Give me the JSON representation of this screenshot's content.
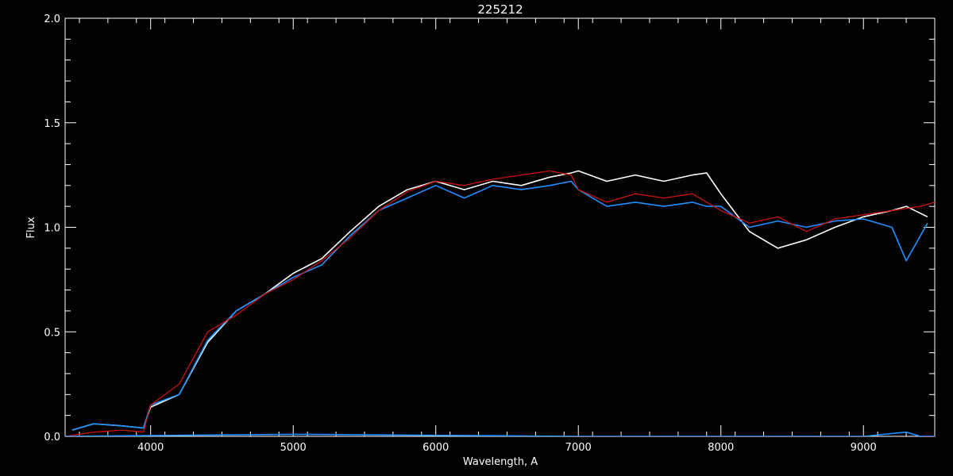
{
  "chart_data": {
    "type": "line",
    "title": "225212",
    "xlabel": "Wavelength, A",
    "ylabel": "Flux",
    "xlim": [
      3400,
      9500
    ],
    "ylim": [
      0.0,
      2.0
    ],
    "x_ticks": [
      4000,
      5000,
      6000,
      7000,
      8000,
      9000
    ],
    "x_tick_labels": [
      "4000",
      "5000",
      "6000",
      "7000",
      "8000",
      "9000"
    ],
    "y_ticks": [
      0.0,
      0.5,
      1.0,
      1.5,
      2.0
    ],
    "y_tick_labels": [
      "0.0",
      "0.5",
      "1.0",
      "1.5",
      "2.0"
    ],
    "grid": false,
    "legend": "none",
    "colors": {
      "background": "#000000",
      "axes": "#ffffff",
      "white_series": "#ffffff",
      "blue_series": "#1e90ff",
      "red_series": "#cc1111"
    },
    "series": [
      {
        "color": "#ffffff",
        "x": [
          3450,
          3600,
          3800,
          3950,
          4000,
          4200,
          4400,
          4600,
          4800,
          5000,
          5200,
          5400,
          5600,
          5800,
          6000,
          6200,
          6400,
          6600,
          6800,
          6950,
          7000,
          7200,
          7400,
          7600,
          7800,
          7900,
          8000,
          8200,
          8400,
          8600,
          8800,
          9000,
          9200,
          9300,
          9450
        ],
        "y": [
          0.03,
          0.06,
          0.05,
          0.04,
          0.14,
          0.2,
          0.45,
          0.6,
          0.68,
          0.78,
          0.85,
          0.98,
          1.1,
          1.18,
          1.22,
          1.18,
          1.22,
          1.2,
          1.24,
          1.26,
          1.27,
          1.22,
          1.25,
          1.22,
          1.25,
          1.26,
          1.16,
          0.98,
          0.9,
          0.94,
          1.0,
          1.05,
          1.08,
          1.1,
          1.05
        ]
      },
      {
        "color": "#1e90ff",
        "x": [
          3450,
          3600,
          3800,
          3950,
          4000,
          4200,
          4400,
          4600,
          4800,
          5000,
          5200,
          5400,
          5600,
          5800,
          6000,
          6200,
          6400,
          6600,
          6800,
          6950,
          7000,
          7200,
          7400,
          7600,
          7800,
          7900,
          8000,
          8200,
          8400,
          8600,
          8800,
          9000,
          9200,
          9300,
          9450
        ],
        "y": [
          0.03,
          0.06,
          0.05,
          0.04,
          0.15,
          0.2,
          0.46,
          0.6,
          0.68,
          0.76,
          0.82,
          0.96,
          1.08,
          1.14,
          1.2,
          1.14,
          1.2,
          1.18,
          1.2,
          1.22,
          1.18,
          1.1,
          1.12,
          1.1,
          1.12,
          1.1,
          1.1,
          1.0,
          1.03,
          1.0,
          1.03,
          1.04,
          1.0,
          0.84,
          1.02
        ]
      },
      {
        "color": "#cc1111",
        "x": [
          3400,
          3600,
          3800,
          3950,
          4000,
          4200,
          4400,
          4600,
          4800,
          5000,
          5200,
          5400,
          5600,
          5800,
          6000,
          6200,
          6400,
          6600,
          6800,
          6950,
          7000,
          7200,
          7400,
          7600,
          7800,
          8000,
          8200,
          8400,
          8600,
          8800,
          9000,
          9200,
          9400,
          9500
        ],
        "y": [
          0.0,
          0.02,
          0.03,
          0.02,
          0.15,
          0.25,
          0.5,
          0.58,
          0.68,
          0.75,
          0.84,
          0.95,
          1.08,
          1.17,
          1.22,
          1.2,
          1.23,
          1.25,
          1.27,
          1.25,
          1.18,
          1.12,
          1.16,
          1.14,
          1.16,
          1.08,
          1.02,
          1.05,
          0.98,
          1.04,
          1.06,
          1.08,
          1.1,
          1.12
        ]
      },
      {
        "color": "#1e90ff",
        "x": [
          3400,
          5000,
          7000,
          9000,
          9300,
          9400,
          9500
        ],
        "y": [
          0.0,
          0.01,
          0.0,
          0.0,
          0.02,
          0.0,
          0.0
        ]
      }
    ]
  }
}
